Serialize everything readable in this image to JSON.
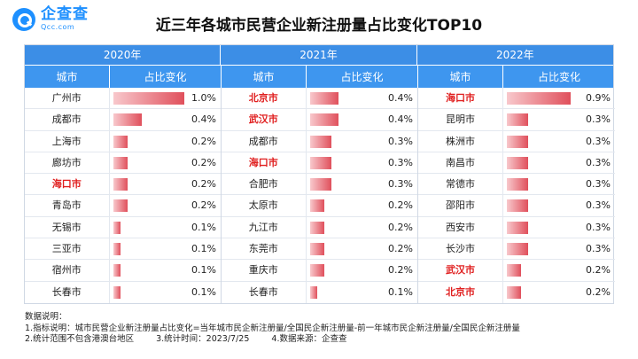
{
  "brand": {
    "name_cn": "企查查",
    "name_en": "Qcc.com"
  },
  "title": "近三年各城市民营企业新注册量占比变化TOP10",
  "header": {
    "city": "城市",
    "change": "占比变化"
  },
  "colors": {
    "header_blue": "#3e96ef",
    "highlight_red": "#e02020",
    "bar_red": "#e0505c"
  },
  "max_value": 1.0,
  "years": [
    {
      "year": "2020年",
      "rows": [
        {
          "city": "广州市",
          "value": 1.0,
          "label": "1.0%",
          "hl": false
        },
        {
          "city": "成都市",
          "value": 0.4,
          "label": "0.4%",
          "hl": false
        },
        {
          "city": "上海市",
          "value": 0.2,
          "label": "0.2%",
          "hl": false
        },
        {
          "city": "廊坊市",
          "value": 0.2,
          "label": "0.2%",
          "hl": false
        },
        {
          "city": "海口市",
          "value": 0.2,
          "label": "0.2%",
          "hl": true
        },
        {
          "city": "青岛市",
          "value": 0.2,
          "label": "0.2%",
          "hl": false
        },
        {
          "city": "无锡市",
          "value": 0.1,
          "label": "0.1%",
          "hl": false
        },
        {
          "city": "三亚市",
          "value": 0.1,
          "label": "0.1%",
          "hl": false
        },
        {
          "city": "宿州市",
          "value": 0.1,
          "label": "0.1%",
          "hl": false
        },
        {
          "city": "长春市",
          "value": 0.1,
          "label": "0.1%",
          "hl": false
        }
      ]
    },
    {
      "year": "2021年",
      "rows": [
        {
          "city": "北京市",
          "value": 0.4,
          "label": "0.4%",
          "hl": true
        },
        {
          "city": "武汉市",
          "value": 0.4,
          "label": "0.4%",
          "hl": true
        },
        {
          "city": "成都市",
          "value": 0.3,
          "label": "0.3%",
          "hl": false
        },
        {
          "city": "海口市",
          "value": 0.3,
          "label": "0.3%",
          "hl": true
        },
        {
          "city": "合肥市",
          "value": 0.3,
          "label": "0.3%",
          "hl": false
        },
        {
          "city": "太原市",
          "value": 0.2,
          "label": "0.2%",
          "hl": false
        },
        {
          "city": "九江市",
          "value": 0.2,
          "label": "0.2%",
          "hl": false
        },
        {
          "city": "东莞市",
          "value": 0.2,
          "label": "0.2%",
          "hl": false
        },
        {
          "city": "重庆市",
          "value": 0.2,
          "label": "0.2%",
          "hl": false
        },
        {
          "city": "长春市",
          "value": 0.1,
          "label": "0.1%",
          "hl": false
        }
      ]
    },
    {
      "year": "2022年",
      "rows": [
        {
          "city": "海口市",
          "value": 0.9,
          "label": "0.9%",
          "hl": true
        },
        {
          "city": "昆明市",
          "value": 0.3,
          "label": "0.3%",
          "hl": false
        },
        {
          "city": "株洲市",
          "value": 0.3,
          "label": "0.3%",
          "hl": false
        },
        {
          "city": "南昌市",
          "value": 0.3,
          "label": "0.3%",
          "hl": false
        },
        {
          "city": "常德市",
          "value": 0.3,
          "label": "0.3%",
          "hl": false
        },
        {
          "city": "邵阳市",
          "value": 0.3,
          "label": "0.3%",
          "hl": false
        },
        {
          "city": "西安市",
          "value": 0.3,
          "label": "0.3%",
          "hl": false
        },
        {
          "city": "长沙市",
          "value": 0.3,
          "label": "0.3%",
          "hl": false
        },
        {
          "city": "武汉市",
          "value": 0.2,
          "label": "0.2%",
          "hl": true
        },
        {
          "city": "北京市",
          "value": 0.2,
          "label": "0.2%",
          "hl": true
        }
      ]
    }
  ],
  "notes": {
    "heading": "数据说明：",
    "line1": "1.指标说明：城市民营企业新注册量占比变化=当年城市民企新注册量/全国民企新注册量-前一年城市民企新注册量/全国民企新注册量",
    "line2": "2.统计范围不包含港澳台地区",
    "line3": "3.统计时间：2023/7/25",
    "line4": "4.数据来源：企查查"
  }
}
